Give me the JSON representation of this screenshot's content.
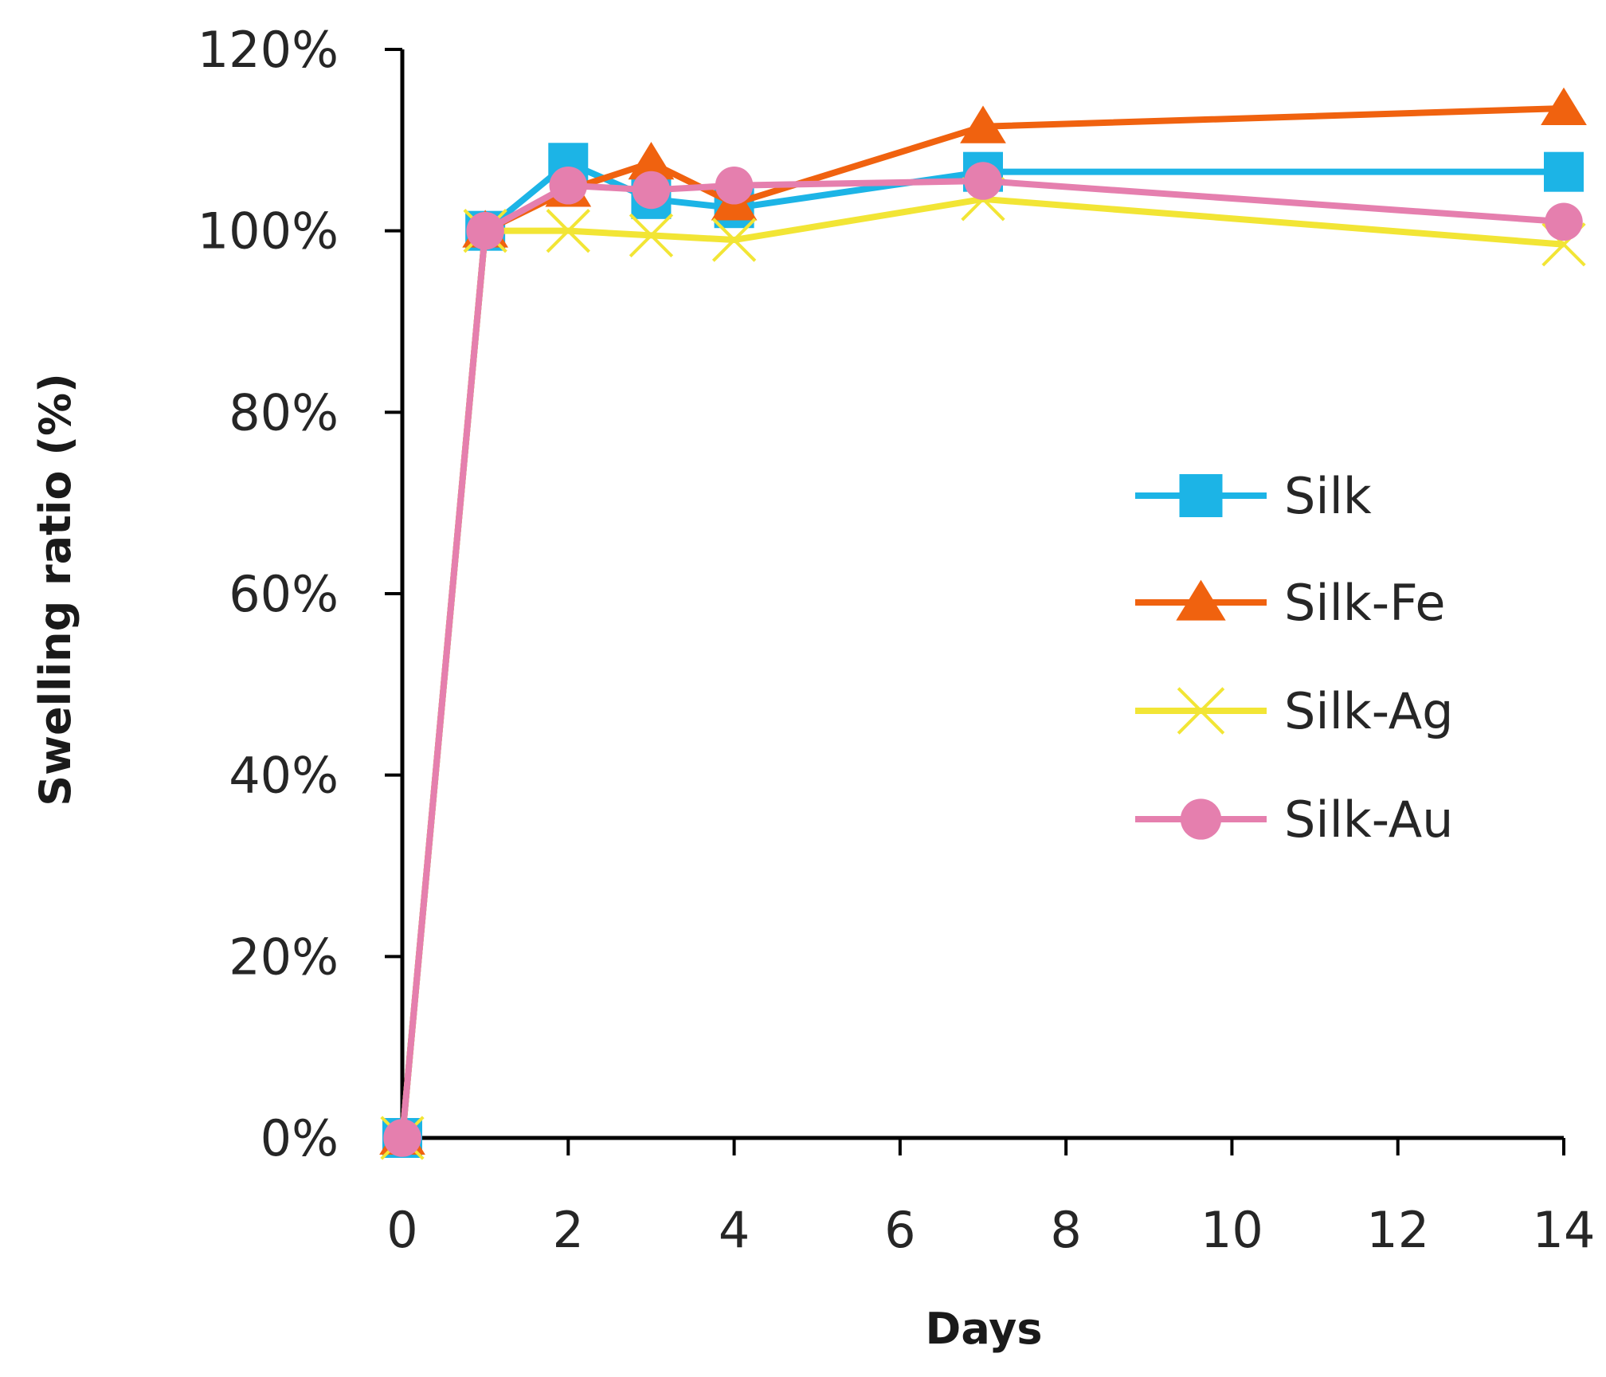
{
  "chart_data": {
    "type": "line",
    "title": "",
    "xlabel": "Days",
    "ylabel": "Swelling ratio (%)",
    "xlim": [
      0,
      14
    ],
    "ylim": [
      0,
      120
    ],
    "x_ticks": [
      0,
      2,
      4,
      6,
      8,
      10,
      12,
      14
    ],
    "x_tick_labels": [
      "0",
      "2",
      "4",
      "6",
      "8",
      "10",
      "12",
      "14"
    ],
    "y_ticks": [
      0,
      20,
      40,
      60,
      80,
      100,
      120
    ],
    "y_tick_labels": [
      "0%",
      "20%",
      "40%",
      "60%",
      "80%",
      "100%",
      "120%"
    ],
    "grid": false,
    "legend_position": "right",
    "x": [
      0,
      1,
      2,
      3,
      4,
      7,
      14
    ],
    "series": [
      {
        "name": "Silk",
        "color": "#1CB4E6",
        "marker": "square",
        "values": [
          0,
          100,
          107.5,
          103.5,
          102.5,
          106.5,
          106.5
        ]
      },
      {
        "name": "Silk-Fe",
        "color": "#F0620F",
        "marker": "triangle",
        "values": [
          0,
          100,
          104.5,
          107.5,
          103,
          111.5,
          113.5
        ]
      },
      {
        "name": "Silk-Ag",
        "color": "#F2E535",
        "marker": "x",
        "values": [
          0,
          100,
          100,
          99.5,
          99,
          103.5,
          98.5
        ]
      },
      {
        "name": "Silk-Au",
        "color": "#E57FAE",
        "marker": "circle",
        "values": [
          0,
          100,
          105,
          104.5,
          105,
          105.5,
          101
        ]
      }
    ]
  }
}
